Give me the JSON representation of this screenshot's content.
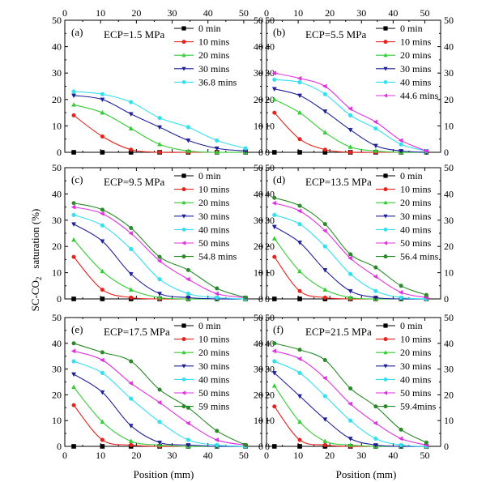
{
  "figure": {
    "ylabel_main": "SC-CO",
    "ylabel_sub": "2",
    "ylabel_tail": "saturation (%)",
    "xlabel": "Position (mm)"
  },
  "chart_data": [
    {
      "type": "line",
      "panel": "(a)",
      "annotation": "ECP=1.5 MPa",
      "xlabel": "Position (mm)",
      "ylabel": "SC-CO2 saturation (%)",
      "xlim": [
        0,
        55
      ],
      "ylim": [
        0,
        50
      ],
      "xticks": [
        0,
        10,
        20,
        30,
        40,
        50
      ],
      "yticks": [
        0,
        10,
        20,
        30,
        40,
        50
      ],
      "legend": "top-right",
      "x": [
        2.5,
        10.5,
        18.5,
        26.5,
        34.5,
        42.5,
        50.5
      ],
      "series": [
        {
          "name": "0 min",
          "color": "#000000",
          "marker": "square",
          "values": [
            0,
            0,
            0,
            0,
            0,
            0,
            0
          ]
        },
        {
          "name": "10 mins",
          "color": "#e8211d",
          "marker": "circle",
          "values": [
            14,
            6,
            1,
            0,
            0,
            0,
            0
          ]
        },
        {
          "name": "20 mins",
          "color": "#33cc33",
          "marker": "triangle-up",
          "values": [
            18,
            15,
            9,
            3,
            0.5,
            0,
            0
          ]
        },
        {
          "name": "30 mins",
          "color": "#1f1f9a",
          "marker": "triangle-down",
          "values": [
            21.5,
            20,
            14.5,
            9.5,
            4.5,
            1.5,
            0.5
          ]
        },
        {
          "name": "36.8 mins",
          "color": "#33e0f0",
          "marker": "hexagon",
          "values": [
            23,
            22,
            19,
            13,
            9.5,
            4.5,
            1.5
          ]
        }
      ]
    },
    {
      "type": "line",
      "panel": "(b)",
      "annotation": "ECP=5.5 MPa",
      "xlabel": "Position (mm)",
      "ylabel": "SC-CO2 saturation (%)",
      "xlim": [
        0,
        55
      ],
      "ylim": [
        0,
        50
      ],
      "xticks": [
        0,
        10,
        20,
        30,
        40,
        50
      ],
      "yticks": [
        0,
        10,
        20,
        30,
        40,
        50
      ],
      "legend": "top-right",
      "x": [
        2.5,
        10.5,
        18.5,
        26.5,
        34.5,
        42.5,
        50.5
      ],
      "series": [
        {
          "name": "0 min",
          "color": "#000000",
          "marker": "square",
          "values": [
            0,
            0,
            0,
            0,
            0,
            0,
            0
          ]
        },
        {
          "name": "10 mins",
          "color": "#e8211d",
          "marker": "circle",
          "values": [
            15,
            5,
            1,
            0,
            0,
            0,
            0
          ]
        },
        {
          "name": "20 mins",
          "color": "#33cc33",
          "marker": "triangle-up",
          "values": [
            20,
            15,
            7.5,
            2,
            0.5,
            0,
            0
          ]
        },
        {
          "name": "30 mins",
          "color": "#1f1f9a",
          "marker": "triangle-down",
          "values": [
            24,
            21.5,
            15.5,
            8.5,
            2.5,
            0.5,
            0
          ]
        },
        {
          "name": "40 mins",
          "color": "#33e0f0",
          "marker": "hexagon",
          "values": [
            27.5,
            26.5,
            22,
            14,
            9,
            3,
            0.5
          ]
        },
        {
          "name": "44.6 mins",
          "color": "#e030e0",
          "marker": "triangle-left",
          "values": [
            30,
            28,
            25,
            16.5,
            11.5,
            4.5,
            0.5
          ]
        }
      ]
    },
    {
      "type": "line",
      "panel": "(c)",
      "annotation": "ECP=9.5 MPa",
      "xlabel": "Position (mm)",
      "ylabel": "SC-CO2 saturation (%)",
      "xlim": [
        0,
        55
      ],
      "ylim": [
        0,
        50
      ],
      "xticks": [
        0,
        10,
        20,
        30,
        40,
        50
      ],
      "yticks": [
        0,
        10,
        20,
        30,
        40,
        50
      ],
      "legend": "top-right",
      "x": [
        2.5,
        10.5,
        18.5,
        26.5,
        34.5,
        42.5,
        50.5
      ],
      "series": [
        {
          "name": "0 min",
          "color": "#000000",
          "marker": "square",
          "values": [
            0,
            0,
            0,
            0,
            0,
            0,
            0
          ]
        },
        {
          "name": "10 mins",
          "color": "#e8211d",
          "marker": "circle",
          "values": [
            16,
            3.5,
            0.5,
            0,
            0,
            0,
            0
          ]
        },
        {
          "name": "20 mins",
          "color": "#33cc33",
          "marker": "triangle-up",
          "values": [
            22.5,
            10.5,
            3.5,
            0.5,
            0,
            0,
            0
          ]
        },
        {
          "name": "30 mins",
          "color": "#1f1f9a",
          "marker": "triangle-down",
          "values": [
            28.5,
            22,
            9.5,
            2,
            0.5,
            0,
            0
          ]
        },
        {
          "name": "40 mins",
          "color": "#33e0f0",
          "marker": "hexagon",
          "values": [
            32,
            28,
            19,
            7.5,
            2,
            0.5,
            0
          ]
        },
        {
          "name": "50 mins",
          "color": "#e030e0",
          "marker": "triangle-left",
          "values": [
            35,
            32.5,
            25,
            14.5,
            7.5,
            2,
            0.5
          ]
        },
        {
          "name": "54.8 mins",
          "color": "#2a8a2a",
          "marker": "circle",
          "values": [
            36.5,
            34,
            27,
            16,
            11,
            4,
            0.5
          ]
        }
      ]
    },
    {
      "type": "line",
      "panel": "(d)",
      "annotation": "ECP=13.5 MPa",
      "xlabel": "Position (mm)",
      "ylabel": "SC-CO2 saturation (%)",
      "xlim": [
        0,
        55
      ],
      "ylim": [
        0,
        50
      ],
      "xticks": [
        0,
        10,
        20,
        30,
        40,
        50
      ],
      "yticks": [
        0,
        10,
        20,
        30,
        40,
        50
      ],
      "legend": "top-right",
      "x": [
        2.5,
        10.5,
        18.5,
        26.5,
        34.5,
        42.5,
        50.5
      ],
      "series": [
        {
          "name": "0 min",
          "color": "#000000",
          "marker": "square",
          "values": [
            0,
            0,
            0,
            0,
            0,
            0,
            0
          ]
        },
        {
          "name": "10 mins",
          "color": "#e8211d",
          "marker": "circle",
          "values": [
            16,
            3,
            0.5,
            0,
            0,
            0,
            0
          ]
        },
        {
          "name": "20 mins",
          "color": "#33cc33",
          "marker": "triangle-up",
          "values": [
            23,
            10.5,
            3.5,
            0.5,
            0,
            0,
            0
          ]
        },
        {
          "name": "30 mins",
          "color": "#1f1f9a",
          "marker": "triangle-down",
          "values": [
            27.5,
            21.5,
            11,
            3,
            0.5,
            0,
            0
          ]
        },
        {
          "name": "40 mins",
          "color": "#33e0f0",
          "marker": "hexagon",
          "values": [
            32,
            28.5,
            20,
            9.5,
            3,
            0.5,
            0
          ]
        },
        {
          "name": "50 mins",
          "color": "#e030e0",
          "marker": "triangle-left",
          "values": [
            36.5,
            33.5,
            26,
            15.5,
            8.5,
            2.5,
            0.5
          ]
        },
        {
          "name": "56.4 mins",
          "color": "#2a8a2a",
          "marker": "circle",
          "values": [
            38.5,
            35.5,
            28.5,
            17,
            12,
            5,
            1.5
          ]
        }
      ]
    },
    {
      "type": "line",
      "panel": "(e)",
      "annotation": "ECP=17.5 MPa",
      "xlabel": "Position (mm)",
      "ylabel": "SC-CO2 saturation (%)",
      "xlim": [
        0,
        55
      ],
      "ylim": [
        0,
        50
      ],
      "xticks": [
        0,
        10,
        20,
        30,
        40,
        50
      ],
      "yticks": [
        0,
        10,
        20,
        30,
        40,
        50
      ],
      "legend": "top-right",
      "x": [
        2.5,
        10.5,
        18.5,
        26.5,
        34.5,
        42.5,
        50.5
      ],
      "series": [
        {
          "name": "0 min",
          "color": "#000000",
          "marker": "square",
          "values": [
            0,
            0,
            0,
            0,
            0,
            0,
            0
          ]
        },
        {
          "name": "10 mins",
          "color": "#e8211d",
          "marker": "circle",
          "values": [
            16,
            2.5,
            0.5,
            0,
            0,
            0,
            0
          ]
        },
        {
          "name": "20 mins",
          "color": "#33cc33",
          "marker": "triangle-up",
          "values": [
            23,
            9.5,
            2,
            0.5,
            0,
            0,
            0
          ]
        },
        {
          "name": "30 mins",
          "color": "#1f1f9a",
          "marker": "triangle-down",
          "values": [
            28,
            21,
            8,
            1.5,
            0.5,
            0,
            0
          ]
        },
        {
          "name": "40 mins",
          "color": "#33e0f0",
          "marker": "hexagon",
          "values": [
            33,
            28.5,
            18.5,
            9.5,
            2.5,
            0.5,
            0
          ]
        },
        {
          "name": "50 mins",
          "color": "#e030e0",
          "marker": "triangle-left",
          "values": [
            37,
            33.5,
            24.5,
            17,
            9,
            2.5,
            0.5
          ]
        },
        {
          "name": "59 mins",
          "color": "#2a8a2a",
          "marker": "circle",
          "values": [
            40,
            36.5,
            33,
            22,
            15,
            6,
            0.5
          ]
        }
      ]
    },
    {
      "type": "line",
      "panel": "(f)",
      "annotation": "ECP=21.5 MPa",
      "xlabel": "Position (mm)",
      "ylabel": "SC-CO2 saturation (%)",
      "xlim": [
        0,
        55
      ],
      "ylim": [
        0,
        50
      ],
      "xticks": [
        0,
        10,
        20,
        30,
        40,
        50
      ],
      "yticks": [
        0,
        10,
        20,
        30,
        40,
        50
      ],
      "legend": "top-right",
      "x": [
        2.5,
        10.5,
        18.5,
        26.5,
        34.5,
        42.5,
        50.5
      ],
      "series": [
        {
          "name": "0 min",
          "color": "#000000",
          "marker": "square",
          "values": [
            0,
            0,
            0,
            0,
            0,
            0,
            0
          ]
        },
        {
          "name": "10 mins",
          "color": "#e8211d",
          "marker": "circle",
          "values": [
            15.5,
            2.5,
            0.5,
            0,
            0,
            0,
            0
          ]
        },
        {
          "name": "20 mins",
          "color": "#33cc33",
          "marker": "triangle-up",
          "values": [
            23.5,
            9.5,
            2,
            0.5,
            0,
            0,
            0
          ]
        },
        {
          "name": "30 mins",
          "color": "#1f1f9a",
          "marker": "triangle-down",
          "values": [
            28.5,
            19.5,
            10.5,
            3,
            0.5,
            0,
            0
          ]
        },
        {
          "name": "40 mins",
          "color": "#33e0f0",
          "marker": "hexagon",
          "values": [
            33,
            28.5,
            19.5,
            10,
            3,
            0.5,
            0
          ]
        },
        {
          "name": "50 mins",
          "color": "#e030e0",
          "marker": "triangle-left",
          "values": [
            37,
            34,
            26.5,
            16.5,
            9,
            3,
            0.5
          ]
        },
        {
          "name": "59.4mins",
          "color": "#2a8a2a",
          "marker": "circle",
          "values": [
            40,
            37.5,
            33.5,
            22.5,
            15.5,
            6.5,
            1.5
          ]
        }
      ]
    }
  ]
}
